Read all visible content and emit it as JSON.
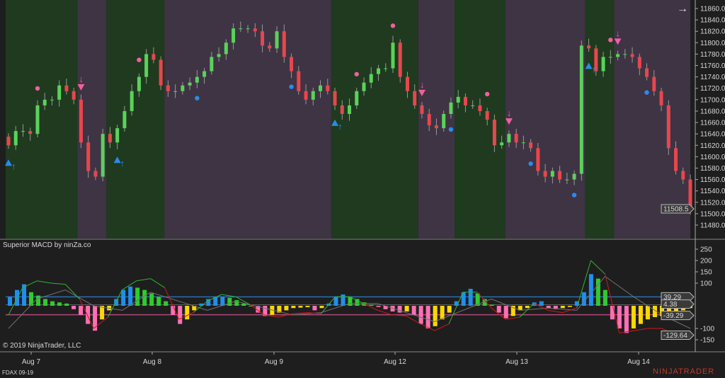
{
  "instrument": "FDAX 09-19",
  "copyright": "© 2019 NinjaTrader, LLC",
  "logo": "NINJATRADER",
  "indicator_label": "Superior MACD by ninZa.co",
  "colors": {
    "background": "#1e1e1e",
    "regime_up": "#1f3a1f",
    "regime_down": "#3e3443",
    "candle_up": "#5ad25a",
    "candle_down": "#e8464e",
    "signal_up": "#2a8bef",
    "signal_down": "#f0609e",
    "hist_rising_pos": "#1e8fef",
    "hist_falling_pos": "#2ecc2e",
    "hist_falling_neg": "#ff6fb5",
    "hist_rising_neg": "#ffd700",
    "macd_pos": "#2fb52f",
    "macd_neg": "#d01818",
    "signal_line": "#707070",
    "upper_level": "#2a6fb0",
    "lower_level": "#b04a7a"
  },
  "chart_data": [
    {
      "type": "candlestick",
      "x_ticks": [
        "Aug 7",
        "Aug 8",
        "Aug 9",
        "Aug 12",
        "Aug 13",
        "Aug 14"
      ],
      "y_ticks": [
        11860,
        11840,
        11820,
        11800,
        11780,
        11760,
        11740,
        11720,
        11700,
        11680,
        11660,
        11640,
        11620,
        11600,
        11580,
        11560,
        11540,
        11520,
        11500,
        11480
      ],
      "ylim": [
        11470,
        11870
      ],
      "last_price": "11508.5",
      "closes": [
        11620,
        11645,
        11645,
        11640,
        11690,
        11700,
        11700,
        11725,
        11715,
        11700,
        11625,
        11575,
        11565,
        11640,
        11625,
        11650,
        11680,
        11715,
        11740,
        11780,
        11770,
        11725,
        11715,
        11715,
        11725,
        11730,
        11740,
        11750,
        11775,
        11780,
        11800,
        11825,
        11825,
        11825,
        11820,
        11795,
        11790,
        11820,
        11775,
        11750,
        11715,
        11700,
        11715,
        11725,
        11715,
        11690,
        11675,
        11690,
        11715,
        11730,
        11745,
        11755,
        11755,
        11800,
        11740,
        11715,
        11690,
        11675,
        11655,
        11650,
        11675,
        11695,
        11705,
        11690,
        11690,
        11680,
        11665,
        11620,
        11625,
        11640,
        11625,
        11625,
        11615,
        11575,
        11565,
        11575,
        11560,
        11560,
        11570,
        11795,
        11790,
        11750,
        11775,
        11775,
        11780,
        11780,
        11775,
        11755,
        11740,
        11715,
        11690,
        11615,
        11575,
        11560,
        11508.5
      ],
      "regimes": [
        {
          "from": 0,
          "to": 10,
          "trend": "up"
        },
        {
          "from": 10,
          "to": 14,
          "trend": "down"
        },
        {
          "from": 14,
          "to": 22,
          "trend": "up"
        },
        {
          "from": 22,
          "to": 45,
          "trend": "down"
        },
        {
          "from": 45,
          "to": 57,
          "trend": "up"
        },
        {
          "from": 57,
          "to": 62,
          "trend": "down"
        },
        {
          "from": 62,
          "to": 69,
          "trend": "up"
        },
        {
          "from": 69,
          "to": 80,
          "trend": "down"
        },
        {
          "from": 80,
          "to": 84,
          "trend": "up"
        },
        {
          "from": 84,
          "to": 95,
          "trend": "down"
        }
      ],
      "signals": {
        "buy_triangles": [
          0,
          15,
          45,
          80
        ],
        "sell_triangles": [
          10,
          57,
          69,
          84
        ],
        "bull_dots": [
          26,
          39,
          61,
          72,
          78,
          88
        ],
        "bear_dots": [
          4,
          18,
          48,
          53,
          66,
          83
        ]
      }
    },
    {
      "type": "macd",
      "title": "Superior MACD by ninZa.co",
      "y_ticks": [
        250,
        200,
        150,
        100,
        -100,
        -150
      ],
      "ylim": [
        -200,
        270
      ],
      "levels": {
        "upper": "39.29",
        "lower": "-39.29"
      },
      "labels": {
        "upper": "39.29",
        "mid": "4.38",
        "lower": "-39.29",
        "macd": "-129.64"
      },
      "histogram": [
        40,
        70,
        95,
        60,
        45,
        30,
        20,
        15,
        10,
        -15,
        -40,
        -80,
        -110,
        -60,
        -20,
        30,
        70,
        85,
        80,
        70,
        55,
        40,
        20,
        -40,
        -80,
        -60,
        -20,
        10,
        30,
        40,
        40,
        35,
        25,
        10,
        0,
        -30,
        -45,
        -40,
        -30,
        -20,
        -10,
        -8,
        -6,
        -20,
        -10,
        10,
        40,
        50,
        40,
        30,
        15,
        5,
        -5,
        -15,
        -25,
        -30,
        -25,
        -40,
        -80,
        -100,
        -90,
        -60,
        -30,
        20,
        60,
        75,
        55,
        30,
        5,
        -30,
        -55,
        -45,
        -20,
        -10,
        15,
        20,
        -10,
        -15,
        -10,
        -5,
        20,
        60,
        140,
        120,
        70,
        -60,
        -100,
        -120,
        -100,
        -80,
        -60,
        -50,
        -45,
        -40,
        -30,
        -20,
        -10
      ],
      "macd": [
        -40,
        80,
        110,
        100,
        95,
        30,
        -100,
        -50,
        70,
        110,
        120,
        80,
        -60,
        -30,
        20,
        50,
        40,
        5,
        -40,
        -50,
        -35,
        -30,
        -35,
        40,
        40,
        10,
        -20,
        -40,
        -45,
        -80,
        -110,
        -80,
        60,
        60,
        -10,
        -60,
        -50,
        10,
        -20,
        -30,
        -10,
        200,
        140,
        -120,
        -110,
        -100,
        -100,
        -130,
        -110
      ],
      "signal": [
        -100,
        30,
        70,
        0,
        -20,
        60,
        20,
        -20,
        20,
        -10,
        -40,
        -30,
        10,
        10,
        -30,
        -70,
        -20,
        30,
        -20,
        -10,
        -20,
        130,
        40,
        -40,
        -100
      ]
    }
  ],
  "toolbar": {
    "scroll_icon": "arrow-right-icon"
  }
}
